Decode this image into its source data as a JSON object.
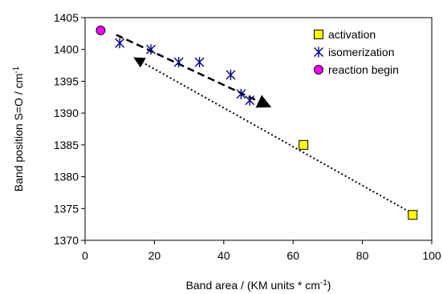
{
  "chart_data": {
    "type": "scatter",
    "xlabel": "Band area / (KM units * cm",
    "xlabel_sup": "-1",
    "xlabel_tail": ")",
    "ylabel": "Band position S=O / cm",
    "ylabel_sup": "-1",
    "xlim": [
      0,
      100
    ],
    "ylim": [
      1370,
      1405
    ],
    "x_ticks": [
      0,
      20,
      40,
      60,
      80,
      100
    ],
    "y_ticks": [
      1370,
      1375,
      1380,
      1385,
      1390,
      1395,
      1400,
      1405
    ],
    "grid": false,
    "legend_position": "top-right",
    "series": [
      {
        "name": "activation",
        "marker": "square",
        "color": "#ffff00",
        "points": [
          [
            63,
            1385
          ],
          [
            94.5,
            1374
          ]
        ]
      },
      {
        "name": "isomerization",
        "marker": "asterisk",
        "color": "#000080",
        "points": [
          [
            10,
            1401
          ],
          [
            19,
            1400
          ],
          [
            27,
            1398
          ],
          [
            33,
            1398
          ],
          [
            42,
            1396
          ],
          [
            45,
            1393
          ],
          [
            47.5,
            1392
          ]
        ]
      },
      {
        "name": "reaction begin",
        "marker": "circle",
        "color": "#ff00ff",
        "points": [
          [
            4.5,
            1403
          ]
        ]
      }
    ],
    "arrows": [
      {
        "style": "dashed",
        "from": [
          9,
          1402.3
        ],
        "to": [
          53,
          1391.1
        ]
      },
      {
        "style": "dotted",
        "from": [
          93.5,
          1374.5
        ],
        "to": [
          14.5,
          1398.6
        ]
      }
    ]
  }
}
